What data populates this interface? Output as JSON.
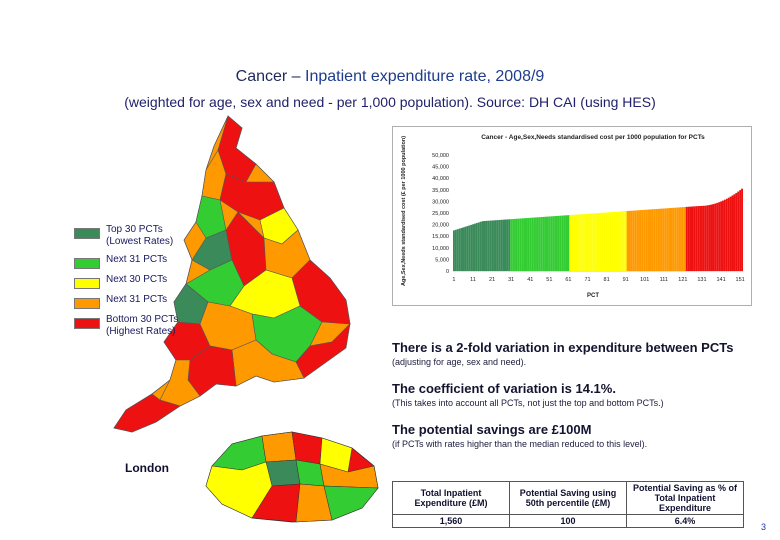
{
  "title": {
    "prefix": "Cancer – ",
    "main": "Inpatient expenditure rate, 2008/9"
  },
  "subtitle": "(weighted for age, sex and need - per 1,000 population). Source: DH CAI (using HES)",
  "legend": [
    {
      "label": "Top 30 PCTs (Lowest Rates)",
      "color": "#3a8a5a"
    },
    {
      "label": "Next 31 PCTs",
      "color": "#33cc33"
    },
    {
      "label": "Next 30 PCTs",
      "color": "#ffff00"
    },
    {
      "label": "Next 31 PCTs",
      "color": "#ff9900"
    },
    {
      "label": "Bottom 30 PCTs (Highest Rates)",
      "color": "#ee1111"
    }
  ],
  "chart_data": {
    "type": "bar",
    "title": "Cancer - Age,Sex,Needs standardised cost per 1000 population for PCTs",
    "xlabel": "PCT",
    "ylabel": "Age,Sex,Needs standardised cost (£ per 1000 population)",
    "x_ticks": [
      "1",
      "11",
      "21",
      "31",
      "41",
      "51",
      "61",
      "71",
      "81",
      "91",
      "101",
      "111",
      "121",
      "131",
      "141",
      "151"
    ],
    "y_ticks": [
      "0",
      "5,000",
      "10,000",
      "15,000",
      "20,000",
      "25,000",
      "30,000",
      "35,000",
      "40,000",
      "45,000",
      "50,000"
    ],
    "ylim": [
      0,
      50000
    ],
    "n_bars": 152,
    "band_colors": [
      "#3a8a5a",
      "#33cc33",
      "#ffff00",
      "#ff9900",
      "#ee1111"
    ],
    "band_sizes": [
      30,
      31,
      30,
      31,
      30
    ],
    "min_value": 17500,
    "mid_value": 25500,
    "max_value": 35500
  },
  "notes": [
    {
      "main": "There is a 2-fold variation in expenditure between PCTs",
      "sub": "(adjusting for age, sex and need)."
    },
    {
      "main": "The coefficient of variation is 14.1%.",
      "sub": "(This takes into account all PCTs, not just the top and bottom PCTs.)"
    },
    {
      "main": "The potential savings are £100M",
      "sub": "(if PCTs with rates higher than the median reduced to this level)."
    }
  ],
  "london_label": "London",
  "table": {
    "headers": [
      "Total Inpatient Expenditure (£M)",
      "Potential Saving using 50th percentile (£M)",
      "Potential Saving as % of Total Inpatient Expenditure"
    ],
    "values": [
      "1,560",
      "100",
      "6.4%"
    ]
  },
  "page_number": "3"
}
